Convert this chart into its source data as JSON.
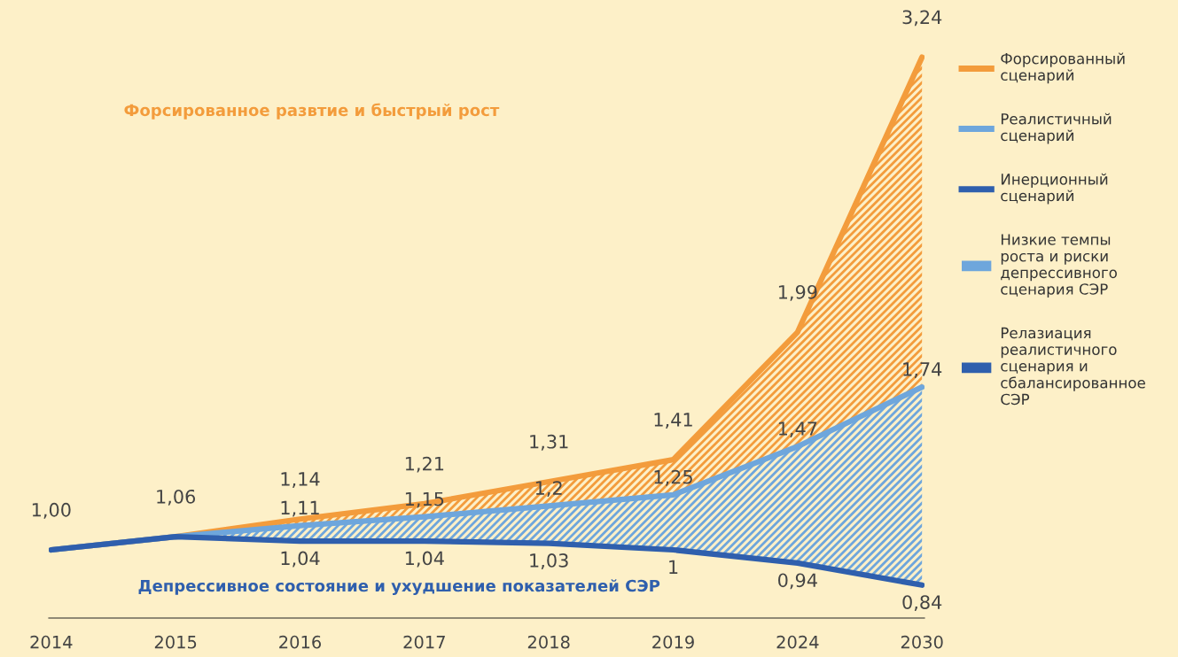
{
  "chart_data": {
    "type": "line",
    "categories": [
      "2014",
      "2015",
      "2016",
      "2017",
      "2018",
      "2019",
      "2024",
      "2030"
    ],
    "ylim": [
      0.69,
      3.5
    ],
    "tick_labels": "x",
    "grid": false,
    "legend": "right",
    "marker": "none",
    "line_style": "solid",
    "data_labels": true,
    "annotations": [
      "Форсированное развтие и быстрый рост",
      "Депрессивное состояние и ухудшение показателей СЭР"
    ],
    "series": [
      {
        "name": "Форсированный сценарий",
        "color": "#f39c3c",
        "values": [
          1.0,
          1.06,
          1.14,
          1.21,
          1.31,
          1.41,
          1.99,
          3.24
        ],
        "lower": [
          1.0,
          1.06,
          1.11,
          1.15,
          1.2,
          1.25,
          1.47,
          1.74
        ],
        "upper": [
          1.0,
          1.06,
          1.14,
          1.21,
          1.31,
          1.41,
          1.99,
          3.24
        ],
        "value_labels": [
          "1,00",
          "1,06",
          "1,14",
          "1,21",
          "1,31",
          "1,41",
          "1,99",
          "3,24"
        ]
      },
      {
        "name": "Реалистичный сценарий",
        "color": "#6ea6dc",
        "values": [
          1.0,
          1.06,
          1.11,
          1.15,
          1.2,
          1.25,
          1.47,
          1.74
        ],
        "lower": [
          1.0,
          1.06,
          1.04,
          1.04,
          1.03,
          1,
          0.94,
          0.84
        ],
        "upper": [
          1.0,
          1.06,
          1.11,
          1.15,
          1.2,
          1.25,
          1.47,
          1.74
        ],
        "value_labels": [
          null,
          null,
          "1,11",
          "1,15",
          "1,2",
          "1,25",
          "1,47",
          "1,74"
        ]
      },
      {
        "name": "Инерционный сценарий",
        "color": "#2f5fad",
        "values": [
          1.0,
          1.06,
          1.04,
          1.04,
          1.03,
          1,
          0.94,
          0.84
        ],
        "value_labels": [
          null,
          null,
          "1,04",
          "1,04",
          "1,03",
          "1",
          "0,94",
          "0,84"
        ]
      },
      {
        "type": "area",
        "name": "Низкие темпы роста и риски депрессивного сценария СЭР",
        "color": "#6ea6dc",
        "values": [
          null,
          null,
          null,
          null,
          null,
          null,
          null,
          null
        ]
      },
      {
        "type": "area",
        "name": "Релазиация реалистичного сценария и сбалансированное СЭР",
        "color": "#2f5fad",
        "values": [
          null,
          null,
          null,
          null,
          null,
          null,
          null,
          null
        ]
      }
    ]
  }
}
